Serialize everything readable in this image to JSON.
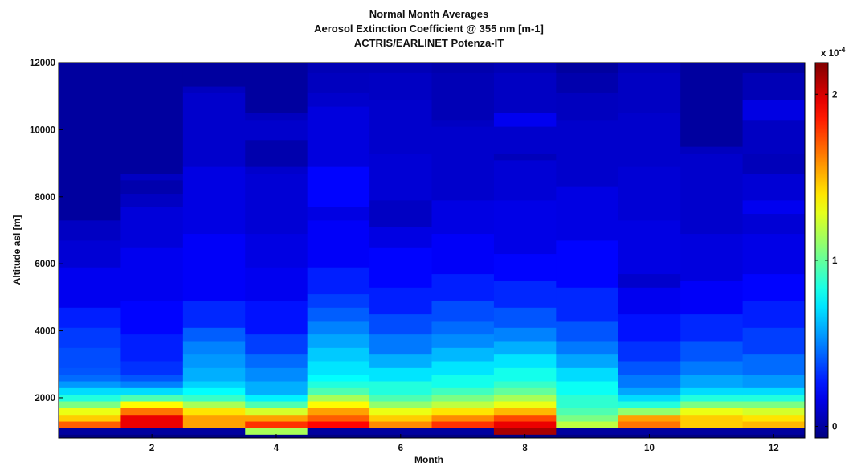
{
  "chart_data": {
    "type": "heatmap",
    "title": [
      "Normal Month Averages",
      "Aerosol Extinction Coefficient @ 355 nm [m-1]",
      "ACTRIS/EARLINET Potenza-IT"
    ],
    "xlabel": "Month",
    "ylabel": "Altitude asl [m]",
    "xlim": [
      0.5,
      12.5
    ],
    "ylim": [
      800,
      12000
    ],
    "xticks": [
      2,
      4,
      6,
      8,
      10,
      12
    ],
    "yticks": [
      2000,
      4000,
      6000,
      8000,
      10000,
      12000
    ],
    "grid": false,
    "colorbar": {
      "colormap": "jet",
      "clim": [
        -7e-06,
        0.000219
      ],
      "ticks": [
        0,
        0.0001,
        0.0002
      ],
      "tick_labels": [
        "0",
        "1",
        "2"
      ],
      "exponent_label": "x 10^-4",
      "exponent_base": "x 10",
      "exponent_power": "-4"
    },
    "bin_height_m": 200,
    "months": [
      1,
      2,
      3,
      4,
      5,
      6,
      7,
      8,
      9,
      10,
      11,
      12
    ],
    "profiles": [
      [
        [
          1000,
          0
        ],
        [
          1200,
          0.00017
        ],
        [
          1400,
          0.000145
        ],
        [
          1600,
          0.00013
        ],
        [
          1800,
          0.000105
        ],
        [
          2000,
          8.5e-05
        ],
        [
          2200,
          7e-05
        ],
        [
          2400,
          5.5e-05
        ],
        [
          2600,
          4.5e-05
        ],
        [
          2800,
          4e-05
        ],
        [
          3000,
          3.8e-05
        ],
        [
          3600,
          3.4e-05
        ],
        [
          4200,
          2.8e-05
        ],
        [
          4800,
          1.8e-05
        ],
        [
          6000,
          1.2e-05
        ],
        [
          6800,
          8e-06
        ],
        [
          7400,
          0
        ]
      ],
      [
        [
          1000,
          0
        ],
        [
          1200,
          0.000195
        ],
        [
          1600,
          0.000165
        ],
        [
          1800,
          0.000135
        ],
        [
          2000,
          9.5e-05
        ],
        [
          2200,
          7e-05
        ],
        [
          2400,
          5e-05
        ],
        [
          2600,
          4e-05
        ],
        [
          2800,
          3.2e-05
        ],
        [
          3200,
          2.8e-05
        ],
        [
          4000,
          2.2e-05
        ],
        [
          5000,
          1.8e-05
        ],
        [
          6600,
          1.3e-05
        ],
        [
          7800,
          8e-06
        ],
        [
          8200,
          3e-06
        ],
        [
          8600,
          8e-06
        ],
        [
          8800,
          0
        ]
      ],
      [
        [
          1000,
          0
        ],
        [
          1200,
          0.000155
        ],
        [
          1600,
          0.00014
        ],
        [
          1800,
          0.000115
        ],
        [
          2000,
          9e-05
        ],
        [
          2200,
          7.8e-05
        ],
        [
          2400,
          6.8e-05
        ],
        [
          2600,
          6e-05
        ],
        [
          3000,
          5.5e-05
        ],
        [
          3400,
          5e-05
        ],
        [
          3800,
          4.2e-05
        ],
        [
          4200,
          3e-05
        ],
        [
          5000,
          2e-05
        ],
        [
          7000,
          1.5e-05
        ],
        [
          9000,
          1e-05
        ],
        [
          11200,
          7e-06
        ],
        [
          11400,
          0
        ]
      ],
      [
        [
          1000,
          0.000115
        ],
        [
          1200,
          0.00018
        ],
        [
          1400,
          0.000155
        ],
        [
          1600,
          0.000125
        ],
        [
          1800,
          9.5e-05
        ],
        [
          2000,
          7.5e-05
        ],
        [
          2200,
          6e-05
        ],
        [
          2600,
          5.2e-05
        ],
        [
          3000,
          4.5e-05
        ],
        [
          3400,
          3.5e-05
        ],
        [
          4000,
          2.5e-05
        ],
        [
          5000,
          1.8e-05
        ],
        [
          6000,
          1.5e-05
        ],
        [
          7000,
          1.2e-05
        ],
        [
          8800,
          1e-05
        ],
        [
          9000,
          3e-06
        ],
        [
          9800,
          1e-05
        ],
        [
          10400,
          7e-06
        ],
        [
          10600,
          0
        ]
      ],
      [
        [
          1000,
          0
        ],
        [
          1200,
          0.00019
        ],
        [
          1400,
          0.00017
        ],
        [
          1600,
          0.000155
        ],
        [
          1800,
          0.000135
        ],
        [
          2000,
          0.000115
        ],
        [
          2200,
          9.5e-05
        ],
        [
          2400,
          8.5e-05
        ],
        [
          2600,
          7.8e-05
        ],
        [
          2800,
          7.2e-05
        ],
        [
          3200,
          6.6e-05
        ],
        [
          3600,
          5.8e-05
        ],
        [
          4000,
          5e-05
        ],
        [
          4400,
          4.2e-05
        ],
        [
          4800,
          3.5e-05
        ],
        [
          5200,
          2.8e-05
        ],
        [
          6000,
          2e-05
        ],
        [
          7400,
          1.5e-05
        ],
        [
          7800,
          2.2e-05
        ],
        [
          9000,
          1.4e-05
        ],
        [
          10800,
          1e-05
        ],
        [
          11200,
          7e-06
        ],
        [
          11800,
          5e-06
        ]
      ],
      [
        [
          1000,
          0
        ],
        [
          1200,
          0.00016
        ],
        [
          1400,
          0.000145
        ],
        [
          1600,
          0.00013
        ],
        [
          1800,
          0.00011
        ],
        [
          2000,
          9.5e-05
        ],
        [
          2200,
          8.5e-05
        ],
        [
          2600,
          7.2e-05
        ],
        [
          3000,
          6e-05
        ],
        [
          3400,
          4.8e-05
        ],
        [
          4000,
          3.8e-05
        ],
        [
          4600,
          2.8e-05
        ],
        [
          5400,
          2.2e-05
        ],
        [
          6600,
          1.5e-05
        ],
        [
          7200,
          8e-06
        ],
        [
          8000,
          1.2e-05
        ],
        [
          9400,
          1e-05
        ],
        [
          11000,
          8e-06
        ],
        [
          11800,
          5e-06
        ]
      ],
      [
        [
          1000,
          0
        ],
        [
          1200,
          0.00018
        ],
        [
          1400,
          0.00016
        ],
        [
          1600,
          0.00014
        ],
        [
          1800,
          0.00012
        ],
        [
          2000,
          0.000105
        ],
        [
          2200,
          9.2e-05
        ],
        [
          2400,
          8.2e-05
        ],
        [
          2800,
          7.2e-05
        ],
        [
          3200,
          6.2e-05
        ],
        [
          3600,
          5.2e-05
        ],
        [
          4000,
          4.5e-05
        ],
        [
          4400,
          3.8e-05
        ],
        [
          5000,
          2.8e-05
        ],
        [
          5800,
          2e-05
        ],
        [
          7000,
          1.5e-05
        ],
        [
          8000,
          1e-05
        ],
        [
          10200,
          8e-06
        ],
        [
          10400,
          5e-06
        ],
        [
          11800,
          3e-06
        ]
      ],
      [
        [
          1000,
          0.00021
        ],
        [
          1200,
          0.000195
        ],
        [
          1400,
          0.000175
        ],
        [
          1600,
          0.00015
        ],
        [
          1800,
          0.00013
        ],
        [
          2000,
          0.000115
        ],
        [
          2200,
          0.0001
        ],
        [
          2400,
          9e-05
        ],
        [
          2600,
          8.2e-05
        ],
        [
          3000,
          7.2e-05
        ],
        [
          3400,
          6e-05
        ],
        [
          3800,
          5e-05
        ],
        [
          4200,
          4e-05
        ],
        [
          4800,
          3e-05
        ],
        [
          5600,
          2.2e-05
        ],
        [
          6400,
          1.6e-05
        ],
        [
          8000,
          1.2e-05
        ],
        [
          9200,
          6e-06
        ],
        [
          9400,
          1e-05
        ],
        [
          10200,
          1.8e-05
        ],
        [
          10600,
          8e-06
        ],
        [
          11800,
          5e-06
        ]
      ],
      [
        [
          1000,
          0
        ],
        [
          1200,
          0.00012
        ],
        [
          1400,
          0.000105
        ],
        [
          1600,
          9.5e-05
        ],
        [
          1800,
          8.8e-05
        ],
        [
          2200,
          8e-05
        ],
        [
          2600,
          7e-05
        ],
        [
          3000,
          5.8e-05
        ],
        [
          3400,
          4.8e-05
        ],
        [
          3800,
          4e-05
        ],
        [
          4400,
          3e-05
        ],
        [
          5400,
          2.2e-05
        ],
        [
          6800,
          1.5e-05
        ],
        [
          8400,
          1e-05
        ],
        [
          10400,
          7e-06
        ],
        [
          11200,
          3e-06
        ],
        [
          11800,
          0
        ]
      ],
      [
        [
          1000,
          0
        ],
        [
          1200,
          0.000165
        ],
        [
          1400,
          0.000155
        ],
        [
          1600,
          0.00011
        ],
        [
          1800,
          8.5e-05
        ],
        [
          2000,
          7e-05
        ],
        [
          2200,
          5.8e-05
        ],
        [
          2400,
          4.8e-05
        ],
        [
          2800,
          4e-05
        ],
        [
          3200,
          3.2e-05
        ],
        [
          3800,
          2.5e-05
        ],
        [
          4600,
          1.8e-05
        ],
        [
          5400,
          1e-05
        ],
        [
          5800,
          1.5e-05
        ],
        [
          7400,
          1.2e-05
        ],
        [
          9000,
          1e-05
        ],
        [
          10600,
          8e-06
        ],
        [
          11800,
          6e-06
        ]
      ],
      [
        [
          1000,
          0
        ],
        [
          1200,
          0.000145
        ],
        [
          1600,
          0.00013
        ],
        [
          1800,
          0.000105
        ],
        [
          2000,
          8.5e-05
        ],
        [
          2200,
          7e-05
        ],
        [
          2400,
          5.8e-05
        ],
        [
          2800,
          4.8e-05
        ],
        [
          3200,
          4e-05
        ],
        [
          3800,
          3e-05
        ],
        [
          4600,
          2e-05
        ],
        [
          5600,
          1.4e-05
        ],
        [
          7000,
          1e-05
        ],
        [
          9400,
          7e-06
        ],
        [
          9600,
          0
        ]
      ],
      [
        [
          1000,
          0
        ],
        [
          1200,
          0.00015
        ],
        [
          1400,
          0.00014
        ],
        [
          1600,
          0.000125
        ],
        [
          1800,
          0.000105
        ],
        [
          2000,
          8.5e-05
        ],
        [
          2200,
          7e-05
        ],
        [
          2400,
          5.5e-05
        ],
        [
          2800,
          4.5e-05
        ],
        [
          3400,
          3.5e-05
        ],
        [
          4200,
          2.8e-05
        ],
        [
          5000,
          2.2e-05
        ],
        [
          5800,
          1.6e-05
        ],
        [
          7000,
          1.2e-05
        ],
        [
          7600,
          1.8e-05
        ],
        [
          8000,
          1.2e-05
        ],
        [
          8800,
          6e-06
        ],
        [
          9400,
          8e-06
        ],
        [
          10400,
          1.5e-05
        ],
        [
          11000,
          5e-06
        ],
        [
          11800,
          0
        ]
      ]
    ]
  }
}
